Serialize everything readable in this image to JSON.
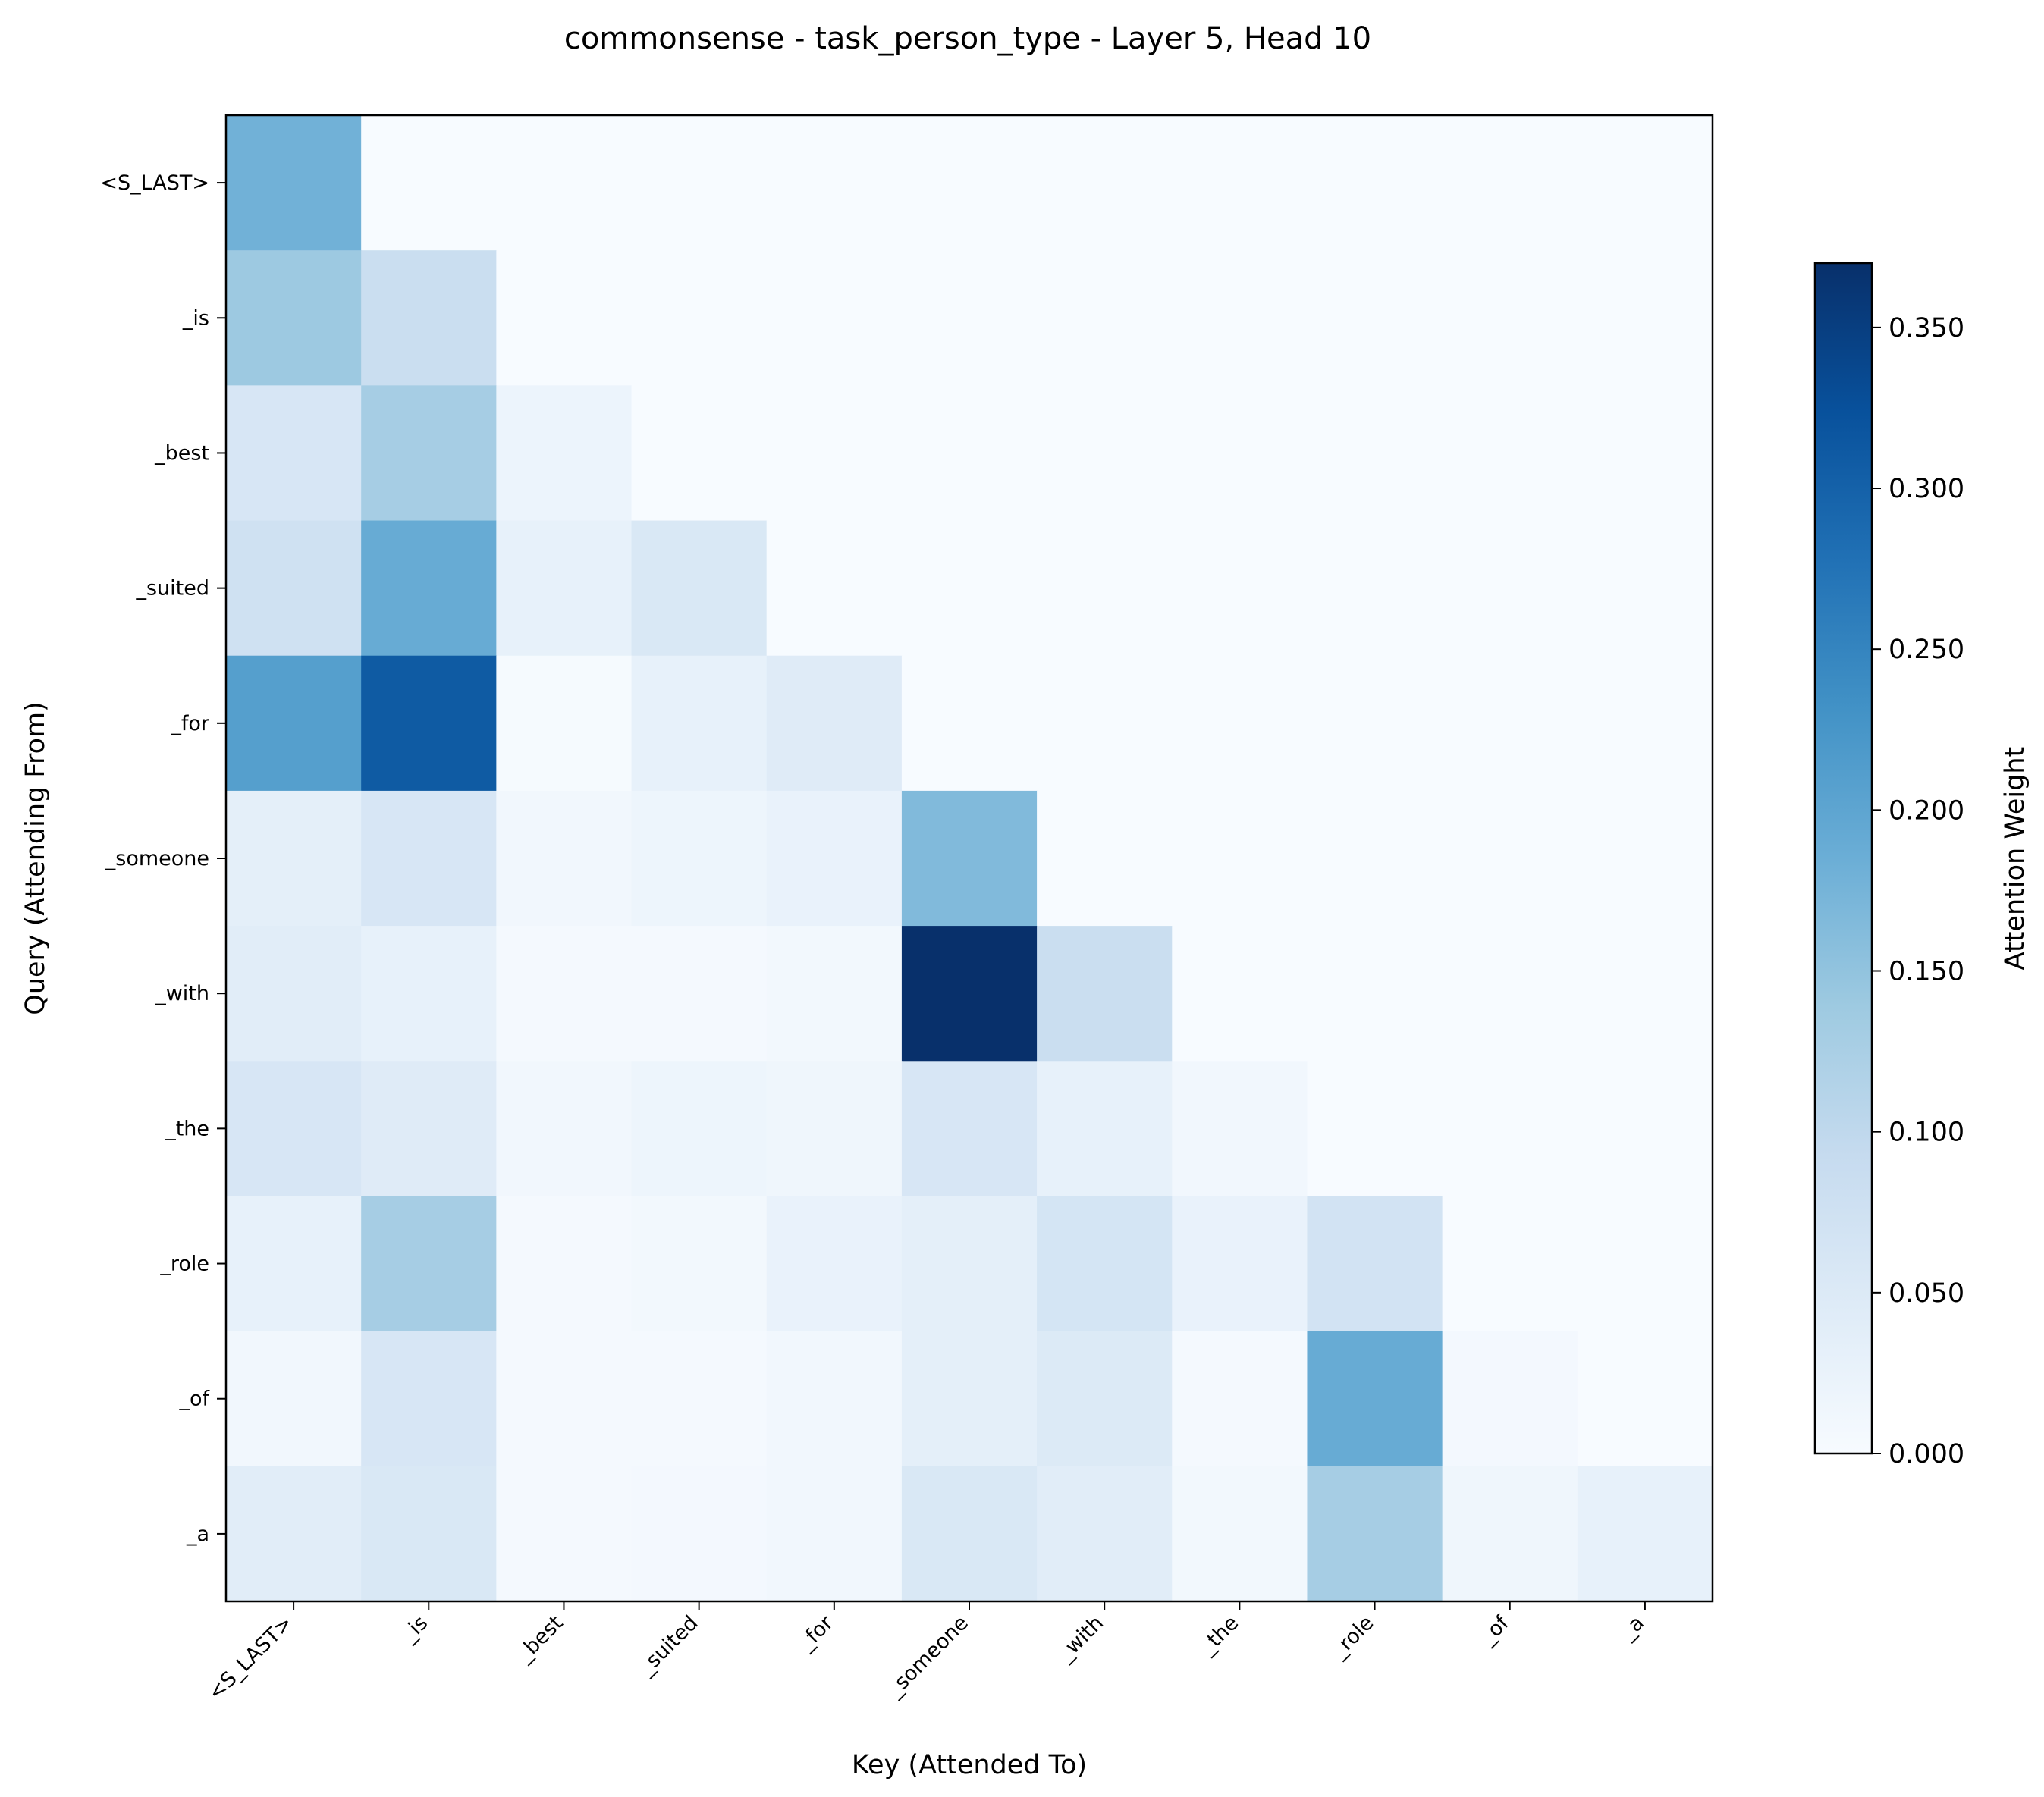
{
  "chart_data": {
    "type": "heatmap",
    "title": "commonsense - task_person_type - Layer 5, Head 10",
    "xlabel": "Key (Attended To)",
    "ylabel": "Query (Attending From)",
    "x_tokens": [
      "<S_LAST>",
      "_is",
      "_best",
      "_suited",
      "_for",
      "_someone",
      "_with",
      "_the",
      "_role",
      "_of",
      "_a"
    ],
    "y_tokens": [
      "<S_LAST>",
      "_is",
      "_best",
      "_suited",
      "_for",
      "_someone",
      "_with",
      "_the",
      "_role",
      "_of",
      "_a"
    ],
    "values": [
      [
        0.18,
        0,
        0,
        0,
        0,
        0,
        0,
        0,
        0,
        0,
        0
      ],
      [
        0.14,
        0.085,
        0,
        0,
        0,
        0,
        0,
        0,
        0,
        0,
        0
      ],
      [
        0.06,
        0.13,
        0.02,
        0,
        0,
        0,
        0,
        0,
        0,
        0,
        0
      ],
      [
        0.075,
        0.19,
        0.03,
        0.055,
        0,
        0,
        0,
        0,
        0,
        0,
        0
      ],
      [
        0.21,
        0.31,
        0.004,
        0.03,
        0.045,
        0,
        0,
        0,
        0,
        0,
        0
      ],
      [
        0.035,
        0.06,
        0.012,
        0.018,
        0.025,
        0.165,
        0,
        0,
        0,
        0,
        0
      ],
      [
        0.04,
        0.03,
        0.006,
        0.006,
        0.01,
        0.37,
        0.085,
        0,
        0,
        0,
        0
      ],
      [
        0.06,
        0.045,
        0.012,
        0.018,
        0.015,
        0.06,
        0.03,
        0.012,
        0,
        0,
        0
      ],
      [
        0.03,
        0.13,
        0.006,
        0.01,
        0.025,
        0.035,
        0.065,
        0.025,
        0.07,
        0,
        0
      ],
      [
        0.012,
        0.06,
        0.006,
        0.006,
        0.012,
        0.035,
        0.05,
        0.006,
        0.19,
        0.008,
        0
      ],
      [
        0.04,
        0.055,
        0.006,
        0.008,
        0.012,
        0.055,
        0.04,
        0.01,
        0.13,
        0.015,
        0.03
      ]
    ],
    "colorbar": {
      "label": "Attention Weight",
      "min": 0.0,
      "max": 0.37,
      "ticks": [
        0.0,
        0.05,
        0.1,
        0.15,
        0.2,
        0.25,
        0.3,
        0.35
      ],
      "tick_labels": [
        "0.000",
        "0.050",
        "0.100",
        "0.150",
        "0.200",
        "0.250",
        "0.300",
        "0.350"
      ]
    },
    "colormap": [
      "#f7fbff",
      "#deebf7",
      "#c6dbef",
      "#9ecae1",
      "#6baed6",
      "#4292c6",
      "#2171b5",
      "#08519c",
      "#08306b"
    ],
    "grid": false,
    "legend": "none"
  }
}
